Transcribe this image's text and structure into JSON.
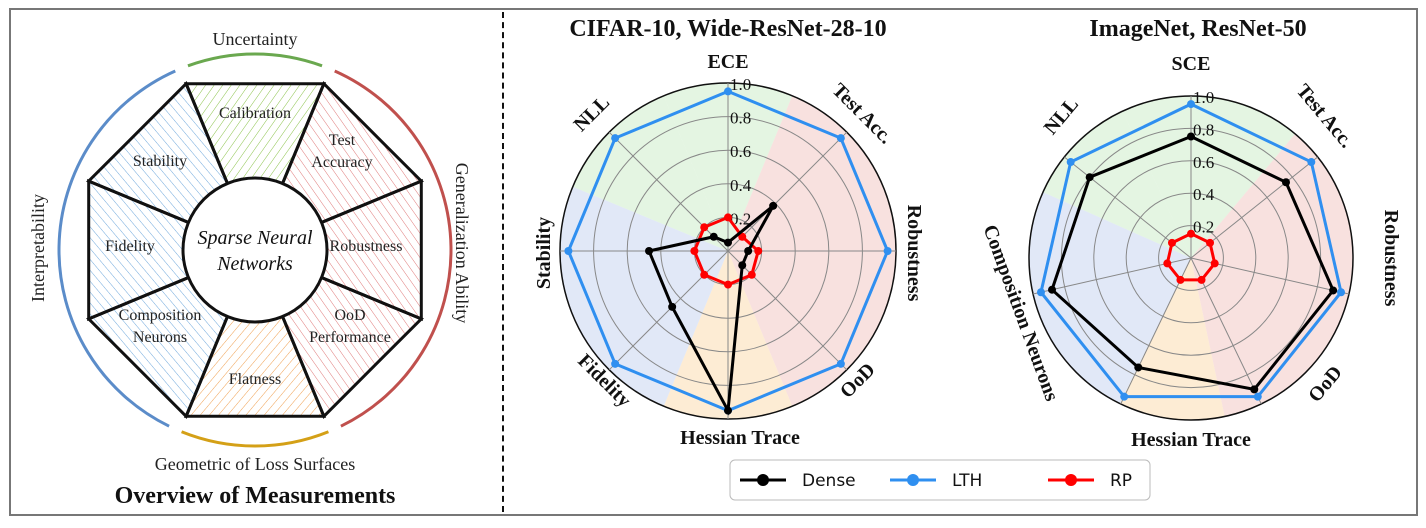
{
  "overview": {
    "title": "Overview of Measurements",
    "center": [
      "Sparse Neural",
      "Networks"
    ],
    "ring_labels": {
      "top": "Uncertainty",
      "right": "Generalization Ability",
      "bottom": "Geometric of Loss Surfaces",
      "left": "Interpretability"
    },
    "segments": [
      [
        "Calibration"
      ],
      [
        "Test",
        "Accuracy"
      ],
      [
        "Robustness"
      ],
      [
        "OoD",
        "Performance"
      ],
      [
        "Flatness"
      ],
      [
        "Composition",
        "Neurons"
      ],
      [
        "Fidelity"
      ],
      [
        "Stability"
      ]
    ],
    "colors": {
      "uncertainty": "#6aa84f",
      "generalization": "#c0504d",
      "loss_surfaces": "#d4a017",
      "interpretability": "#5b8cc9"
    }
  },
  "legend": [
    "Dense",
    "LTH",
    "RP"
  ],
  "colors": {
    "Dense": "#000000",
    "LTH": "#2f8ff0",
    "RP": "#ff0000"
  },
  "chart_data": [
    {
      "type": "radar",
      "title": "CIFAR-10, Wide-ResNet-28-10",
      "axes": [
        "ECE",
        "Test Acc.",
        "Robustness",
        "OoD",
        "Hessian Trace",
        "Fidelity",
        "Stability",
        "NLL"
      ],
      "radial_ticks": [
        "0.2",
        "0.4",
        "0.6",
        "0.8",
        "1.0"
      ],
      "rlim": [
        0,
        1
      ],
      "series": [
        {
          "name": "Dense",
          "values": [
            0.05,
            0.38,
            0.12,
            0.12,
            0.95,
            0.47,
            0.47,
            0.12
          ]
        },
        {
          "name": "LTH",
          "values": [
            0.95,
            0.95,
            0.95,
            0.95,
            0.95,
            0.95,
            0.95,
            0.95
          ]
        },
        {
          "name": "RP",
          "values": [
            0.2,
            0.12,
            0.18,
            0.2,
            0.2,
            0.2,
            0.2,
            0.2
          ]
        }
      ]
    },
    {
      "type": "radar",
      "title": "ImageNet, ResNet-50",
      "axes": [
        "SCE",
        "Test Acc.",
        "Robustness",
        "OoD",
        "Hessian Trace",
        "Composition Neurons",
        "NLL"
      ],
      "radial_ticks": [
        "0.2",
        "0.4",
        "0.6",
        "0.8",
        "1.0"
      ],
      "rlim": [
        0,
        1
      ],
      "series": [
        {
          "name": "Dense",
          "values": [
            0.75,
            0.75,
            0.9,
            0.9,
            0.75,
            0.88,
            0.8
          ]
        },
        {
          "name": "LTH",
          "values": [
            0.95,
            0.95,
            0.95,
            0.95,
            0.95,
            0.95,
            0.95
          ]
        },
        {
          "name": "RP",
          "values": [
            0.15,
            0.15,
            0.15,
            0.15,
            0.15,
            0.15,
            0.15
          ]
        }
      ]
    }
  ]
}
